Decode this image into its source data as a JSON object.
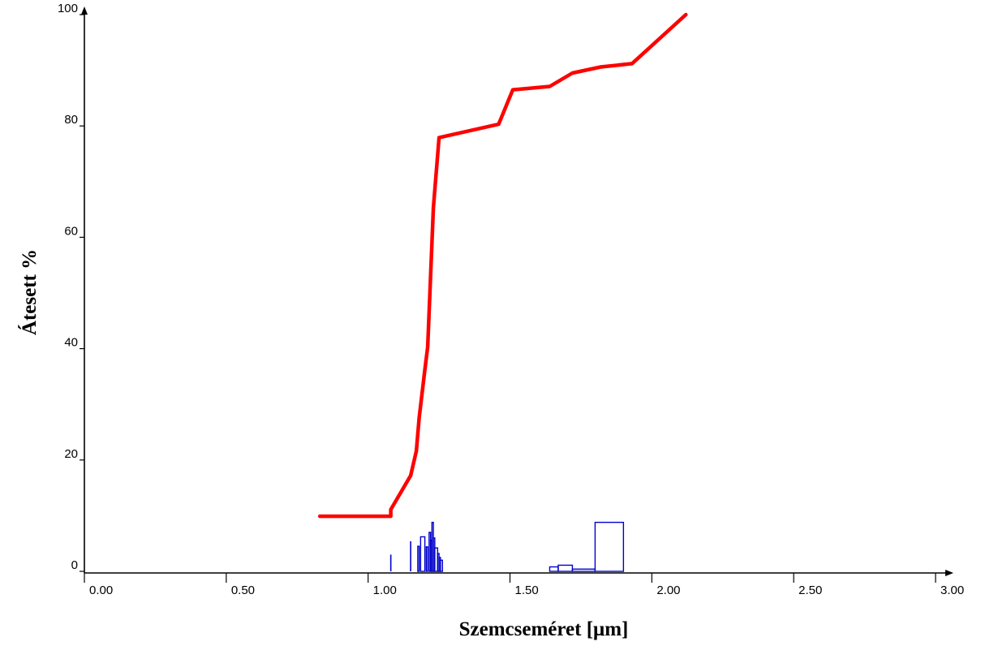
{
  "chart_data": {
    "type": "line",
    "xlabel": "Szemcseméret [μm]",
    "ylabel": "Átesett %",
    "xlim": [
      0,
      3
    ],
    "ylim": [
      0,
      100
    ],
    "x_ticks": [
      "0.00",
      "0.50",
      "1.00",
      "1.50",
      "2.00",
      "2.50",
      "3.00"
    ],
    "y_ticks": [
      "0",
      "20",
      "40",
      "60",
      "80",
      "100"
    ],
    "grid": false,
    "series": [
      {
        "color": "#ff0000",
        "kind": "cumulative-line",
        "x": [
          0.83,
          1.08,
          1.08,
          1.15,
          1.17,
          1.18,
          1.2,
          1.21,
          1.23,
          1.25,
          1.46,
          1.51,
          1.64,
          1.72,
          1.82,
          1.93,
          2.12
        ],
        "y": [
          9.9,
          9.9,
          11.1,
          17.2,
          21.6,
          27.6,
          36.2,
          40.3,
          65.3,
          77.9,
          80.3,
          86.5,
          87.1,
          89.5,
          90.6,
          91.2,
          100
        ]
      },
      {
        "color": "#0000cc",
        "kind": "distribution-bars",
        "bars": [
          {
            "x0": 1.08,
            "x1": 1.08,
            "y": 3.0
          },
          {
            "x0": 1.15,
            "x1": 1.15,
            "y": 5.4
          },
          {
            "x0": 1.175,
            "x1": 1.18,
            "y": 4.5
          },
          {
            "x0": 1.185,
            "x1": 1.2,
            "y": 6.2
          },
          {
            "x0": 1.205,
            "x1": 1.21,
            "y": 4.4
          },
          {
            "x0": 1.215,
            "x1": 1.22,
            "y": 7.0
          },
          {
            "x0": 1.22,
            "x1": 1.225,
            "y": 5.6
          },
          {
            "x0": 1.225,
            "x1": 1.23,
            "y": 8.8
          },
          {
            "x0": 1.23,
            "x1": 1.235,
            "y": 6.0
          },
          {
            "x0": 1.235,
            "x1": 1.245,
            "y": 4.2
          },
          {
            "x0": 1.245,
            "x1": 1.25,
            "y": 3.2
          },
          {
            "x0": 1.25,
            "x1": 1.255,
            "y": 2.5
          },
          {
            "x0": 1.255,
            "x1": 1.262,
            "y": 2.0
          },
          {
            "x0": 1.64,
            "x1": 1.67,
            "y": 0.8
          },
          {
            "x0": 1.67,
            "x1": 1.72,
            "y": 1.1
          },
          {
            "x0": 1.72,
            "x1": 1.8,
            "y": 0.4
          },
          {
            "x0": 1.8,
            "x1": 1.9,
            "y": 8.8
          }
        ]
      }
    ]
  }
}
